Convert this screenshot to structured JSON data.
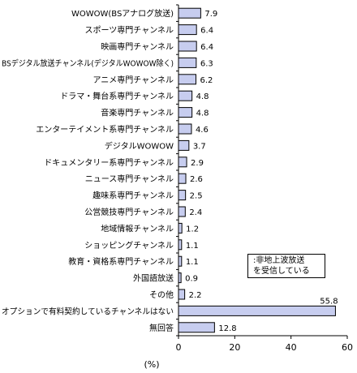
{
  "chart_data": {
    "type": "bar",
    "orientation": "horizontal",
    "categories": [
      "WOWOW(BSアナログ放送)",
      "スポーツ専門チャンネル",
      "映画専門チャンネル",
      "BSデジタル放送チャンネル(デジタルWOWOW除く)",
      "アニメ専門チャンネル",
      "ドラマ・舞台系専門チャンネル",
      "音楽専門チャンネル",
      "エンターテイメント系専門チャンネル",
      "デジタルWOWOW",
      "ドキュメンタリー系専門チャンネル",
      "ニュース専門チャンネル",
      "趣味系専門チャンネル",
      "公営競技専門チャンネル",
      "地域情報チャンネル",
      "ショッピングチャンネル",
      "教育・資格系専門チャンネル",
      "外国語放送",
      "その他",
      "オプションで有料契約しているチャンネルはない",
      "無回答"
    ],
    "values": [
      7.9,
      6.4,
      6.4,
      6.3,
      6.2,
      4.8,
      4.8,
      4.6,
      3.7,
      2.9,
      2.6,
      2.5,
      2.4,
      1.2,
      1.1,
      1.1,
      0.9,
      2.2,
      55.8,
      12.8
    ],
    "value_labels": [
      "7.9",
      "6.4",
      "6.4",
      "6.3",
      "6.2",
      "4.8",
      "4.8",
      "4.6",
      "3.7",
      "2.9",
      "2.6",
      "2.5",
      "2.4",
      "1.2",
      "1.1",
      "1.1",
      "0.9",
      "2.2",
      "55.8",
      "12.8"
    ],
    "xlim": [
      0,
      60
    ],
    "xticks": [
      "0",
      "20",
      "40",
      "60"
    ],
    "unit_label": "(%)",
    "legend_lines": [
      ":非地上波放送",
      "を受信している"
    ],
    "grid": false,
    "colors": {
      "bar_fill": "#c7cdef",
      "bar_stroke": "#000000",
      "axis": "#000000"
    }
  }
}
